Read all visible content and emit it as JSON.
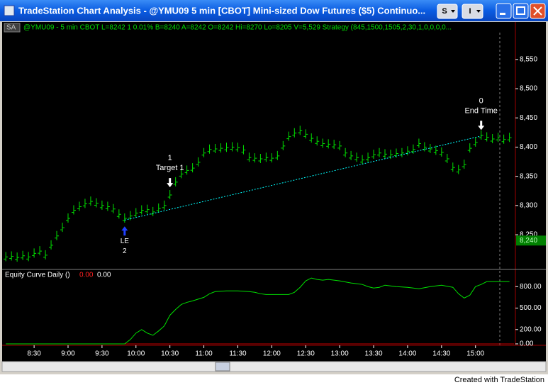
{
  "window": {
    "title": "TradeStation Chart Analysis - @YMU09 5 min [CBOT] Mini-sized Dow Futures ($5) Continuo...",
    "buttons": [
      "S",
      "I"
    ]
  },
  "status_line": {
    "symbol_box": "SA",
    "text": "@YMU09 - 5 min  CBOT  L=8242  1   0.01%   B=8240  A=8242  O=8242  Hi=8270  Lo=8205  V=5,529  Strategy (845,1500,1505,2,30,1,0,0,0,0..."
  },
  "chart_data": [
    {
      "type": "ohlc",
      "color": "#00e000",
      "x": [
        485,
        490,
        495,
        500,
        505,
        510,
        515,
        520,
        525,
        530,
        535,
        540,
        545,
        550,
        555,
        560,
        565,
        570,
        575,
        580,
        585,
        590,
        595,
        600,
        605,
        610,
        615,
        620,
        625,
        630,
        635,
        640,
        645,
        650,
        655,
        660,
        665,
        670,
        675,
        680,
        685,
        690,
        695,
        700,
        705,
        710,
        715,
        720,
        725,
        730,
        735,
        740,
        745,
        750,
        755,
        760,
        765,
        770,
        775,
        780,
        785,
        790,
        795,
        800,
        805,
        810,
        815,
        820,
        825,
        830,
        835,
        840,
        845,
        850,
        855,
        860,
        865,
        870,
        875,
        880,
        885,
        890,
        895,
        900,
        905,
        910,
        915,
        920,
        925,
        930
      ],
      "values": [
        8212,
        8213,
        8211,
        8214,
        8212,
        8218,
        8222,
        8215,
        8232,
        8248,
        8262,
        8278,
        8292,
        8298,
        8303,
        8307,
        8304,
        8300,
        8298,
        8294,
        8285,
        8278,
        8282,
        8287,
        8292,
        8293,
        8289,
        8295,
        8300,
        8318,
        8340,
        8354,
        8360,
        8364,
        8374,
        8390,
        8396,
        8397,
        8398,
        8399,
        8400,
        8399,
        8395,
        8382,
        8381,
        8380,
        8382,
        8381,
        8385,
        8402,
        8418,
        8424,
        8428,
        8422,
        8415,
        8410,
        8406,
        8405,
        8404,
        8402,
        8390,
        8385,
        8382,
        8378,
        8382,
        8387,
        8390,
        8388,
        8387,
        8389,
        8390,
        8393,
        8396,
        8406,
        8400,
        8397,
        8394,
        8391,
        8380,
        8365,
        8361,
        8370,
        8398,
        8408,
        8420,
        8417,
        8414,
        8416,
        8413,
        8416
      ],
      "xlim": [
        483,
        934
      ],
      "ylim": [
        8193,
        8613
      ],
      "yticks": [
        {
          "value": 8250,
          "label": "8,250"
        },
        {
          "value": 8300,
          "label": "8,300"
        },
        {
          "value": 8350,
          "label": "8,350"
        },
        {
          "value": 8400,
          "label": "8,400"
        },
        {
          "value": 8450,
          "label": "8,450"
        },
        {
          "value": 8500,
          "label": "8,500"
        },
        {
          "value": 8550,
          "label": "8,550"
        }
      ],
      "last": {
        "value": 8240,
        "label": "8,240",
        "color": "#008000"
      },
      "trendline": {
        "x": [
          590,
          905
        ],
        "values": [
          8275,
          8419
        ],
        "color": "#00ffff"
      },
      "annotations": [
        {
          "x": 630,
          "y": 8330,
          "lines": [
            "1",
            "Target 1"
          ],
          "direction": "down",
          "color": "#ffffff"
        },
        {
          "x": 905,
          "y": 8428,
          "lines": [
            "0",
            "End Time"
          ],
          "direction": "down",
          "color": "#ffffff"
        },
        {
          "x": 590,
          "y": 8268,
          "lines": [
            "LE",
            "2"
          ],
          "direction": "up",
          "color": "#2040ff"
        }
      ]
    },
    {
      "type": "line",
      "title": "Equity Curve Daily ()",
      "header_values": [
        {
          "text": "0.00",
          "color": "#ff2020"
        },
        {
          "text": "0.00",
          "color": "#ffffff"
        }
      ],
      "color": "#00e000",
      "x": [
        485,
        590,
        595,
        600,
        605,
        610,
        615,
        620,
        625,
        630,
        635,
        640,
        645,
        650,
        660,
        665,
        670,
        680,
        690,
        700,
        705,
        710,
        715,
        720,
        735,
        740,
        745,
        750,
        755,
        760,
        765,
        770,
        780,
        790,
        800,
        805,
        810,
        815,
        820,
        830,
        840,
        850,
        860,
        870,
        880,
        885,
        890,
        895,
        900,
        905,
        910,
        930
      ],
      "values": [
        0,
        0,
        60,
        150,
        200,
        150,
        120,
        180,
        250,
        400,
        480,
        550,
        580,
        600,
        650,
        700,
        730,
        740,
        740,
        730,
        720,
        700,
        690,
        690,
        690,
        720,
        790,
        880,
        920,
        900,
        890,
        900,
        880,
        850,
        830,
        800,
        780,
        790,
        820,
        800,
        790,
        770,
        800,
        820,
        790,
        700,
        640,
        680,
        800,
        830,
        870,
        870
      ],
      "xlim": [
        483,
        934
      ],
      "ylim": [
        -20,
        1030
      ],
      "yticks": [
        {
          "value": 0,
          "label": "0.00"
        },
        {
          "value": 200,
          "label": "200.00"
        },
        {
          "value": 500,
          "label": "500.00"
        },
        {
          "value": 800,
          "label": "800.00"
        }
      ],
      "xticks": [
        {
          "value": 510,
          "label": "8:30"
        },
        {
          "value": 540,
          "label": "9:00"
        },
        {
          "value": 570,
          "label": "9:30"
        },
        {
          "value": 600,
          "label": "10:00"
        },
        {
          "value": 630,
          "label": "10:30"
        },
        {
          "value": 660,
          "label": "11:00"
        },
        {
          "value": 690,
          "label": "11:30"
        },
        {
          "value": 720,
          "label": "12:00"
        },
        {
          "value": 750,
          "label": "12:30"
        },
        {
          "value": 780,
          "label": "13:00"
        },
        {
          "value": 810,
          "label": "13:30"
        },
        {
          "value": 840,
          "label": "14:00"
        },
        {
          "value": 870,
          "label": "14:30"
        },
        {
          "value": 900,
          "label": "15:00"
        }
      ]
    }
  ],
  "footer": "Created with TradeStation"
}
